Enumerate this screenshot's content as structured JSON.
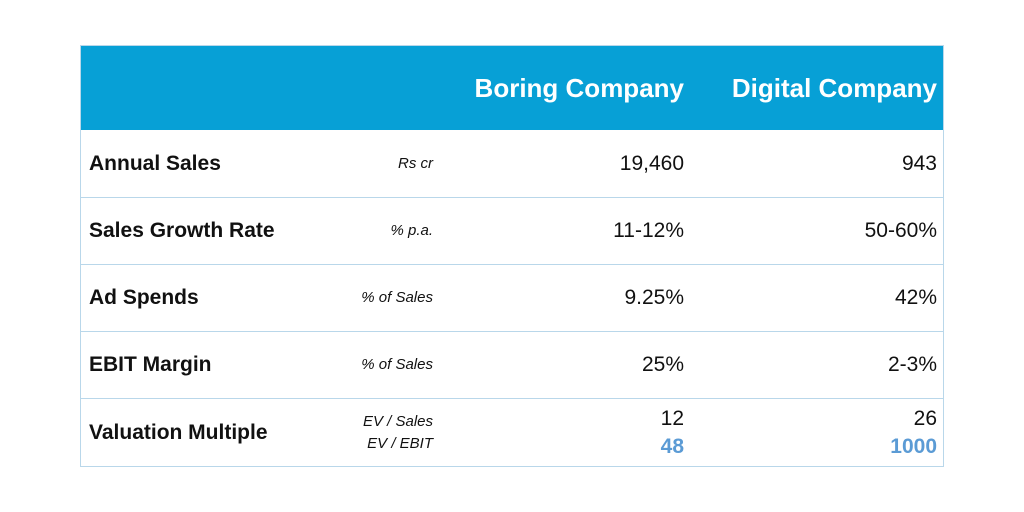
{
  "header": {
    "col1": "Boring Company",
    "col2": "Digital Company"
  },
  "rows": [
    {
      "label": "Annual Sales",
      "unit": "Rs cr",
      "col1": "19,460",
      "col2": "943"
    },
    {
      "label": "Sales Growth Rate",
      "unit": "% p.a.",
      "col1": "11-12%",
      "col2": "50-60%"
    },
    {
      "label": "Ad Spends",
      "unit": "% of Sales",
      "col1": "9.25%",
      "col2": "42%"
    },
    {
      "label": "EBIT Margin",
      "unit": "% of Sales",
      "col1": "25%",
      "col2": "2-3%"
    },
    {
      "label": "Valuation Multiple",
      "unit": "EV / Sales",
      "unit2": "EV / EBIT",
      "col1": "12",
      "col1_sub": "48",
      "col2": "26",
      "col2_sub": "1000"
    }
  ],
  "colors": {
    "header_bg": "#07a0d6",
    "header_text": "#ffffff",
    "accent_value": "#5b9bd5",
    "row_border": "#b9d7ea"
  }
}
